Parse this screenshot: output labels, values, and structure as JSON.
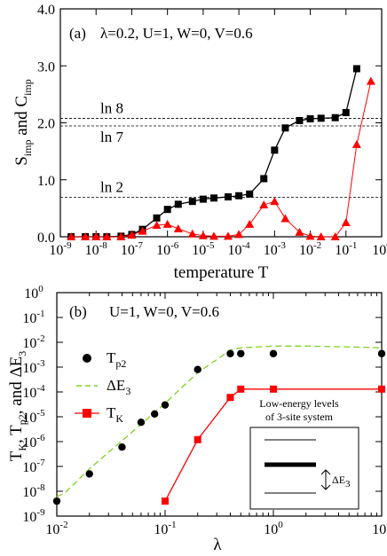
{
  "chart_data": [
    {
      "type": "line",
      "panel_label": "(a)",
      "params": "λ=0.2, U=1, W=0, V=0.6",
      "xlabel": "temperature T",
      "ylabel": {
        "s": "S",
        "s_sub": "imp",
        "and": " and C",
        "c_sub": "imp"
      },
      "xscale": "log",
      "xlim": [
        1e-09,
        1
      ],
      "ylim": [
        0,
        4
      ],
      "x_ticks": [
        {
          "e": -9
        },
        {
          "e": -8
        },
        {
          "e": -7
        },
        {
          "e": -6
        },
        {
          "e": -5
        },
        {
          "e": -4
        },
        {
          "e": -3
        },
        {
          "e": -2
        },
        {
          "e": -1
        },
        {
          "e": 0
        }
      ],
      "y_ticks": [
        "0.0",
        "1.0",
        "2.0",
        "3.0",
        "4.0"
      ],
      "hlines": [
        {
          "label": "ln 8",
          "y": 2.079
        },
        {
          "label": "ln 7",
          "y": 1.946
        },
        {
          "label": "ln 2",
          "y": 0.693
        }
      ],
      "series": [
        {
          "color": "#000000",
          "marker": "square",
          "x": [
            2e-09,
            5e-09,
            1e-08,
            2e-08,
            5e-08,
            1e-07,
            2e-07,
            5e-07,
            1e-06,
            2e-06,
            5e-06,
            1e-05,
            2e-05,
            5e-05,
            0.0001,
            0.0002,
            0.0005,
            0.001,
            0.002,
            0.005,
            0.01,
            0.02,
            0.05,
            0.1,
            0.2
          ],
          "y": [
            0.0,
            0.0,
            0.0,
            0.0,
            0.01,
            0.04,
            0.13,
            0.33,
            0.48,
            0.57,
            0.62,
            0.66,
            0.68,
            0.7,
            0.72,
            0.75,
            1.02,
            1.52,
            1.91,
            2.04,
            2.07,
            2.08,
            2.09,
            2.18,
            2.95
          ]
        },
        {
          "color": "#ff0000",
          "marker": "triangle",
          "x": [
            2e-09,
            5e-09,
            1e-08,
            2e-08,
            5e-08,
            1e-07,
            2e-07,
            5e-07,
            1e-06,
            2e-06,
            5e-06,
            1e-05,
            2e-05,
            5e-05,
            0.0001,
            0.0002,
            0.0005,
            0.001,
            0.002,
            0.005,
            0.01,
            0.02,
            0.05,
            0.1,
            0.2,
            0.5
          ],
          "y": [
            0.0,
            0.0,
            0.0,
            0.0,
            0.0,
            0.03,
            0.1,
            0.2,
            0.22,
            0.14,
            0.05,
            0.02,
            0.01,
            0.01,
            0.04,
            0.22,
            0.56,
            0.62,
            0.32,
            0.08,
            0.01,
            0.0,
            0.0,
            0.25,
            1.62,
            2.73
          ]
        }
      ]
    },
    {
      "type": "line",
      "panel_label": "(b)",
      "params": "U=1, W=0, V=0.6",
      "xlabel": "λ",
      "ylabel": {
        "a": "T",
        "a_sub": "K",
        "b": ", T",
        "b_sub": "p2",
        "c": ", and ΔE",
        "c_sub": "3"
      },
      "xscale": "log",
      "yscale": "log",
      "xlim": [
        0.01,
        10
      ],
      "ylim": [
        1e-09,
        1
      ],
      "x_ticks": [
        {
          "e": -2
        },
        {
          "e": -1
        },
        {
          "e": 0
        },
        {
          "e": 1
        }
      ],
      "y_ticks": [
        {
          "e": -9
        },
        {
          "e": -8
        },
        {
          "e": -7
        },
        {
          "e": -6
        },
        {
          "e": -5
        },
        {
          "e": -4
        },
        {
          "e": -3
        },
        {
          "e": -2
        },
        {
          "e": -1
        },
        {
          "e": 0
        }
      ],
      "legend_position": "left",
      "series": [
        {
          "name": "T",
          "name_sub": "p2",
          "color": "#000000",
          "marker": "circle",
          "line": "none",
          "x": [
            0.01,
            0.02,
            0.04,
            0.06,
            0.08,
            0.1,
            0.2,
            0.4,
            0.5,
            1.0,
            10
          ],
          "y": [
            4e-09,
            5e-08,
            6e-07,
            6e-06,
            1.3e-05,
            3e-05,
            0.0008,
            0.0035,
            0.0035,
            0.0035,
            0.0035
          ]
        },
        {
          "name": "ΔE",
          "name_sub": "3",
          "color": "#7ed321",
          "marker": "none",
          "line": "dashed",
          "x": [
            0.01,
            0.012,
            0.02,
            0.05,
            0.1,
            0.2,
            0.3,
            0.4,
            0.5,
            1.0,
            2.0,
            5.0,
            10
          ],
          "y": [
            6e-09,
            9e-09,
            8e-08,
            2.5e-06,
            3.5e-05,
            0.0006,
            0.002,
            0.005,
            0.006,
            0.007,
            0.007,
            0.0065,
            0.006
          ]
        },
        {
          "name": "T",
          "name_sub": "K",
          "color": "#ff0000",
          "marker": "square",
          "line": "solid",
          "x": [
            0.1,
            0.2,
            0.4,
            0.5,
            1.0,
            10
          ],
          "y": [
            4e-09,
            1.2e-06,
            6e-05,
            0.00013,
            0.00013,
            0.00013
          ]
        }
      ],
      "inset": {
        "title_lines": [
          "Low-energy levels",
          "of 3-site system"
        ],
        "delta_label": "ΔE",
        "delta_sub": "3",
        "levels": [
          {
            "group": 0,
            "values": [
              0.0
            ]
          },
          {
            "group": 1,
            "values": [
              0.0,
              0.04,
              0.08,
              0.12,
              0.16
            ]
          },
          {
            "group": 2,
            "values": [
              0.0
            ]
          }
        ]
      }
    }
  ]
}
